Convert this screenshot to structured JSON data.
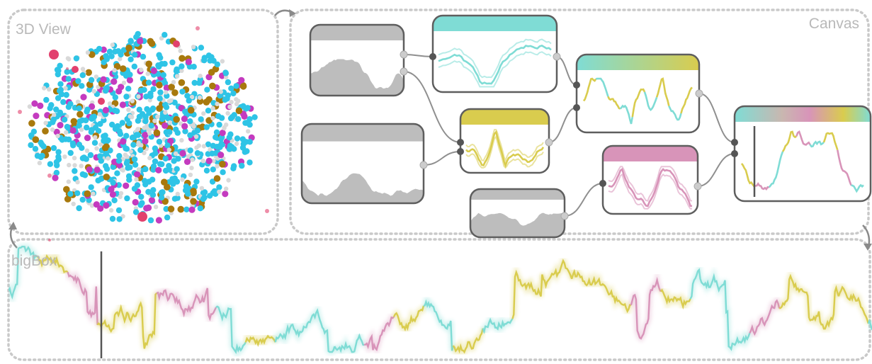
{
  "panels": {
    "view3d": {
      "label": "3D View"
    },
    "canvas": {
      "label": "Canvas"
    },
    "bigbox": {
      "label": "bigBox"
    }
  },
  "colors": {
    "frame": "#c9c9c9",
    "node_border": "#5e5e5e",
    "node_fill_gray": "#bdbdbd",
    "cyan": "#7fdcd5",
    "yellow": "#d9cc4e",
    "pink": "#d894b9",
    "atom_cyan": "#2ec4e6",
    "atom_magenta": "#c43bbf",
    "atom_brown": "#a8790d",
    "atom_white": "#d9d9d9",
    "atom_red": "#e2416e"
  },
  "nodes": [
    {
      "id": "source-1",
      "kind": "gray"
    },
    {
      "id": "source-2",
      "kind": "gray"
    },
    {
      "id": "source-3",
      "kind": "gray"
    },
    {
      "id": "filter-cyan",
      "kind": "cyan"
    },
    {
      "id": "filter-yellow",
      "kind": "yellow"
    },
    {
      "id": "filter-pink",
      "kind": "pink"
    },
    {
      "id": "merge-cyan-yellow",
      "kind": "gradient-cyan-yellow"
    },
    {
      "id": "merge-all",
      "kind": "gradient-all"
    }
  ]
}
